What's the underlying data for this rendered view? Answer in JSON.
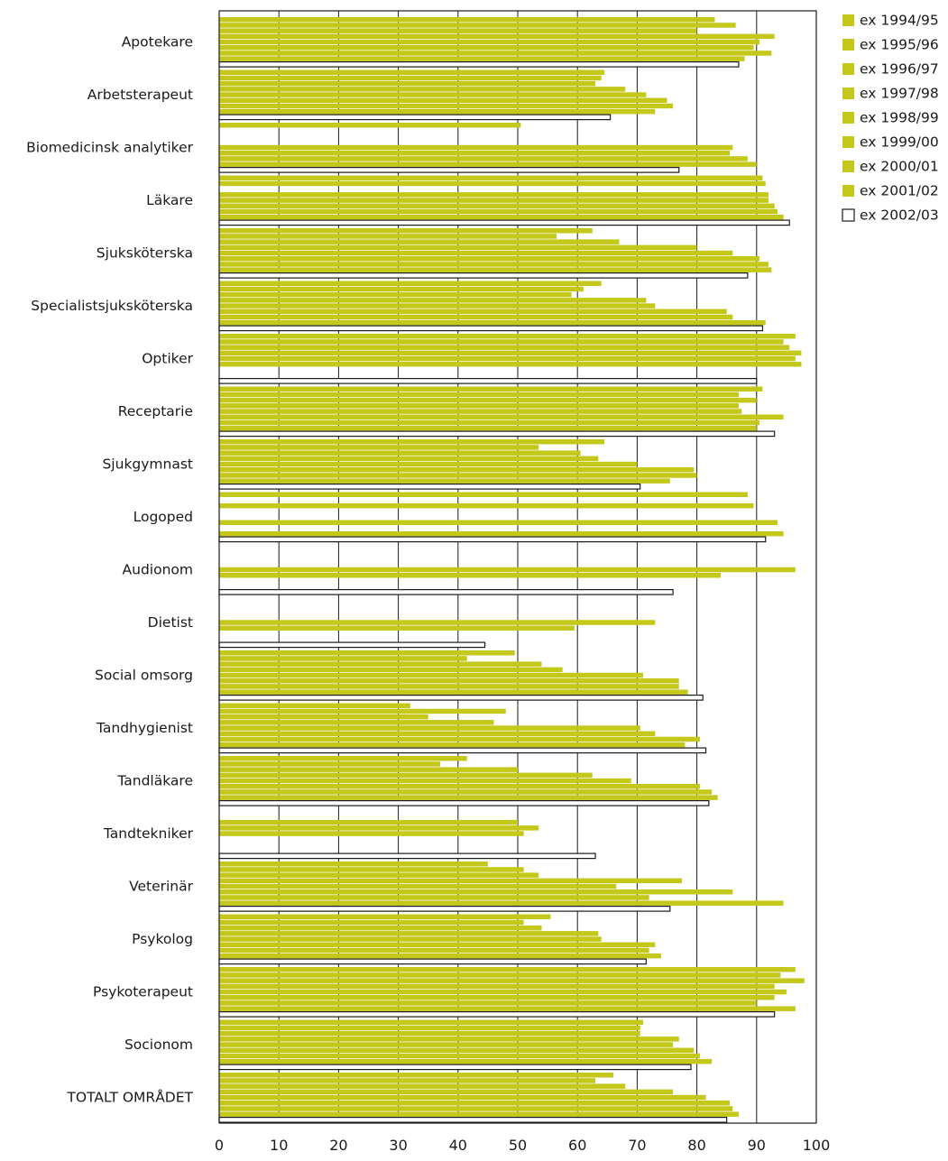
{
  "chart_data": {
    "type": "bar",
    "orientation": "horizontal",
    "grid": true,
    "legend_position": "top-right",
    "colors": {
      "filled": "#c3c81a",
      "hollow": "#ffffff",
      "outline": "#1a1a1a"
    },
    "xlim": [
      0,
      100
    ],
    "x_ticks": [
      0,
      10,
      20,
      30,
      40,
      50,
      60,
      70,
      80,
      90,
      100
    ],
    "categories": [
      "Apotekare",
      "Arbetsterapeut",
      "Biomedicinsk analytiker",
      "Läkare",
      "Sjuksköterska",
      "Specialistsjuksköterska",
      "Optiker",
      "Receptarie",
      "Sjukgymnast",
      "Logoped",
      "Audionom",
      "Dietist",
      "Social omsorg",
      "Tandhygienist",
      "Tandläkare",
      "Tandtekniker",
      "Veterinär",
      "Psykolog",
      "Psykoterapeut",
      "Socionom",
      "TOTALT OMRÅDET"
    ],
    "series": [
      {
        "name": "ex 1994/95",
        "style": "filled",
        "values": [
          83,
          64.5,
          50.5,
          91,
          62.5,
          64,
          96.5,
          91,
          64.5,
          88.5,
          null,
          null,
          49.5,
          32,
          41.5,
          null,
          45,
          55.5,
          96.5,
          71,
          66
        ]
      },
      {
        "name": "ex 1995/96",
        "style": "filled",
        "values": [
          86.5,
          64,
          null,
          91.5,
          56.5,
          61,
          94.5,
          87,
          53.5,
          null,
          null,
          null,
          41.5,
          48,
          37,
          null,
          51,
          51,
          94,
          70.5,
          63
        ]
      },
      {
        "name": "ex 1996/97",
        "style": "filled",
        "values": [
          80,
          63,
          null,
          null,
          67,
          59,
          95.5,
          90,
          60.5,
          89.5,
          null,
          null,
          54,
          35,
          50,
          50,
          53.5,
          54,
          98,
          70.5,
          68
        ]
      },
      {
        "name": "ex 1997/98",
        "style": "filled",
        "values": [
          93,
          68,
          null,
          92,
          80,
          71.5,
          97.5,
          87,
          63.5,
          null,
          null,
          null,
          57.5,
          46,
          62.5,
          53.5,
          77.5,
          63.5,
          93,
          77,
          76
        ]
      },
      {
        "name": "ex 1998/99",
        "style": "filled",
        "values": [
          90.5,
          71.5,
          86,
          92,
          86,
          73,
          96.5,
          87.5,
          70,
          null,
          96.5,
          73,
          71,
          70.5,
          69,
          51,
          66.5,
          64,
          95,
          76,
          81.5
        ]
      },
      {
        "name": "ex 1999/00",
        "style": "filled",
        "values": [
          89.5,
          75,
          85.5,
          93,
          90.5,
          85,
          97.5,
          94.5,
          79.5,
          93.5,
          84,
          59.5,
          77,
          73,
          80.5,
          null,
          86,
          73,
          93,
          79.5,
          85.5
        ]
      },
      {
        "name": "ex 2000/01",
        "style": "filled",
        "values": [
          92.5,
          76,
          88.5,
          93.5,
          92,
          86,
          null,
          90.5,
          80,
          null,
          null,
          null,
          77,
          80.5,
          82.5,
          null,
          72,
          72,
          90,
          80.5,
          86
        ]
      },
      {
        "name": "ex 2001/02",
        "style": "filled",
        "values": [
          88,
          73,
          90,
          94.5,
          92.5,
          91.5,
          null,
          90,
          75.5,
          94.5,
          null,
          null,
          78.5,
          78,
          83.5,
          null,
          94.5,
          74,
          96.5,
          82.5,
          87
        ]
      },
      {
        "name": "ex 2002/03",
        "style": "hollow",
        "values": [
          87,
          65.5,
          77,
          95.5,
          88.5,
          91,
          90,
          93,
          70.5,
          91.5,
          76,
          44.5,
          81,
          81.5,
          82,
          63,
          75.5,
          71.5,
          93,
          79,
          85
        ]
      }
    ]
  }
}
